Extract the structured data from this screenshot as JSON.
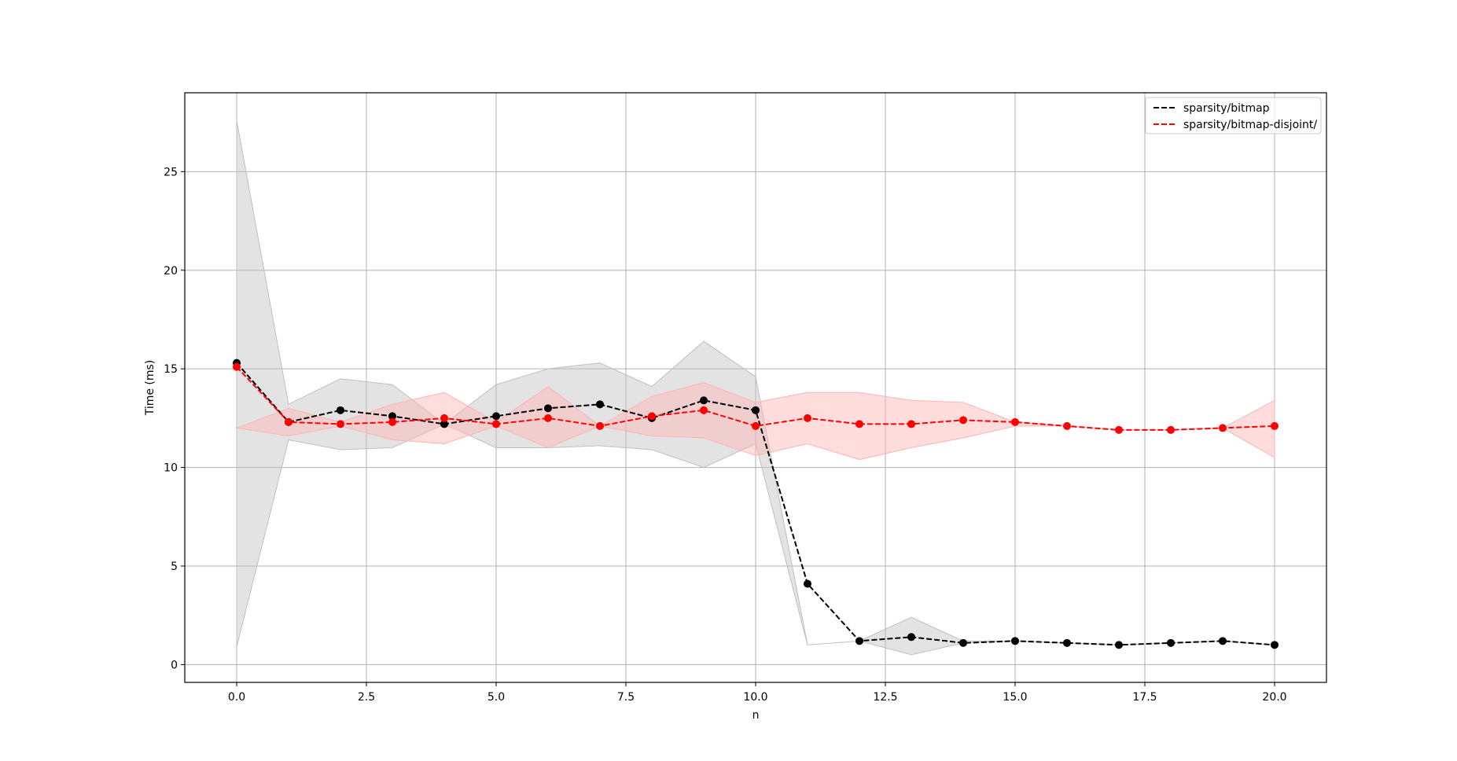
{
  "chart_data": {
    "type": "line",
    "xlabel": "n",
    "ylabel": "Time (ms)",
    "xlim": [
      -1,
      21
    ],
    "ylim": [
      -0.9,
      29
    ],
    "xticks": [
      0.0,
      2.5,
      5.0,
      7.5,
      10.0,
      12.5,
      15.0,
      17.5,
      20.0
    ],
    "xtick_labels": [
      "0.0",
      "2.5",
      "5.0",
      "7.5",
      "10.0",
      "12.5",
      "15.0",
      "17.5",
      "20.0"
    ],
    "yticks": [
      0,
      5,
      10,
      15,
      20,
      25
    ],
    "ytick_labels": [
      "0",
      "5",
      "10",
      "15",
      "20",
      "25"
    ],
    "grid": true,
    "legend_position": "top-right",
    "x": [
      0,
      1,
      2,
      3,
      4,
      5,
      6,
      7,
      8,
      9,
      10,
      11,
      12,
      13,
      14,
      15,
      16,
      17,
      18,
      19,
      20
    ],
    "series": [
      {
        "name": "sparsity/bitmap",
        "color": "#000000",
        "band_color": "#c0c0c0",
        "values": [
          15.3,
          12.3,
          12.9,
          12.6,
          12.2,
          12.6,
          13.0,
          13.2,
          12.5,
          13.4,
          12.9,
          4.1,
          1.2,
          1.4,
          1.1,
          1.2,
          1.1,
          1.0,
          1.1,
          1.2,
          1.0
        ],
        "upper": [
          27.6,
          13.2,
          14.5,
          14.2,
          12.2,
          14.2,
          15.0,
          15.3,
          14.1,
          16.4,
          14.6,
          1.0,
          1.2,
          2.4,
          1.2,
          1.2,
          1.1,
          1.0,
          1.1,
          1.2,
          1.0
        ],
        "lower": [
          0.9,
          11.4,
          10.9,
          11.0,
          12.2,
          11.0,
          11.0,
          11.1,
          10.9,
          10.0,
          11.2,
          1.0,
          1.2,
          0.5,
          1.1,
          1.2,
          1.1,
          1.0,
          1.1,
          1.2,
          1.0
        ]
      },
      {
        "name": "sparsity/bitmap-disjoint/",
        "color": "#ff0000",
        "band_color": "#ffb3b3",
        "values": [
          15.1,
          12.3,
          12.2,
          12.3,
          12.5,
          12.2,
          12.5,
          12.1,
          12.6,
          12.9,
          12.1,
          12.5,
          12.2,
          12.2,
          12.4,
          12.3,
          12.1,
          11.9,
          11.9,
          12.0,
          12.1
        ],
        "upper": [
          12.0,
          13.0,
          12.3,
          13.2,
          13.8,
          12.3,
          14.1,
          12.1,
          13.6,
          14.3,
          13.3,
          13.8,
          13.8,
          13.4,
          13.3,
          12.3,
          12.1,
          11.9,
          11.9,
          12.0,
          13.4
        ],
        "lower": [
          12.0,
          11.6,
          12.1,
          11.4,
          11.2,
          12.1,
          11.0,
          12.1,
          11.6,
          11.5,
          10.6,
          11.2,
          10.4,
          11.0,
          11.5,
          12.1,
          12.1,
          11.9,
          11.9,
          12.0,
          10.5
        ]
      }
    ]
  }
}
